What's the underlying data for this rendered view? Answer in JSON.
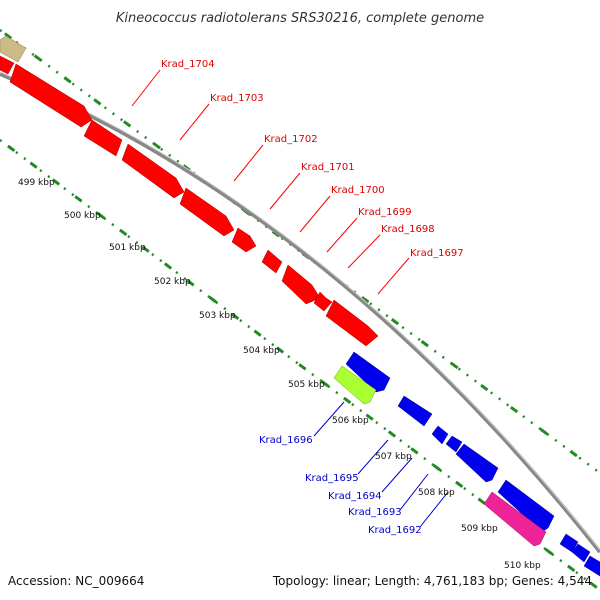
{
  "title": "Kineococcus radiotolerans SRS30216, complete genome",
  "accession": "Accession: NC_009664",
  "summary": "Topology: linear; Length: 4,761,183 bp; Genes: 4,544",
  "colors": {
    "forward": "#ff0000",
    "reverse": "#0000ee",
    "lime": "#aaff33",
    "magenta": "#ee2299",
    "olive": "#ccbb88",
    "backbone": "#888888",
    "ticks": "#228b22"
  },
  "scale": [
    {
      "label": "499 kbp"
    },
    {
      "label": "500 kbp"
    },
    {
      "label": "501 kbp"
    },
    {
      "label": "502 kbp"
    },
    {
      "label": "503 kbp"
    },
    {
      "label": "504 kbp"
    },
    {
      "label": "505 kbp"
    },
    {
      "label": "506 kbp"
    },
    {
      "label": "507 kbp"
    },
    {
      "label": "508 kbp"
    },
    {
      "label": "509 kbp"
    },
    {
      "label": "510 kbp"
    }
  ],
  "genes_forward": [
    {
      "label": "Krad_1704"
    },
    {
      "label": "Krad_1703"
    },
    {
      "label": "Krad_1702"
    },
    {
      "label": "Krad_1701"
    },
    {
      "label": "Krad_1700"
    },
    {
      "label": "Krad_1699"
    },
    {
      "label": "Krad_1698"
    },
    {
      "label": "Krad_1697"
    }
  ],
  "genes_reverse": [
    {
      "label": "Krad_1696"
    },
    {
      "label": "Krad_1695"
    },
    {
      "label": "Krad_1694"
    },
    {
      "label": "Krad_1693"
    },
    {
      "label": "Krad_1692"
    }
  ]
}
